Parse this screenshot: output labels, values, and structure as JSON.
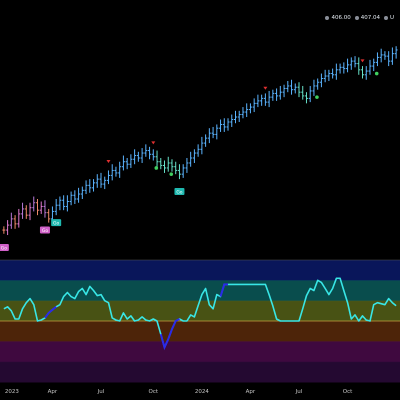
{
  "header": {
    "readouts": [
      {
        "value": "406.00"
      },
      {
        "value": "407.04"
      },
      {
        "value": "U"
      }
    ]
  },
  "colors": {
    "background": "#000000",
    "bar_up_strong": "#3b8fe0",
    "bar_up": "#5bb4ff",
    "bar_rising": "#66e0c8",
    "bar_down_strong": "#e07ad0",
    "bar_down": "#ee8a6a",
    "bar_down_mild": "#b87ad8",
    "signal_down": "#e03030",
    "signal_up": "#40d060",
    "go_label_bg": "#1fb9b0",
    "nogo_label_bg": "#d060c8",
    "oscillator_line": "#38e6e6",
    "oscillator_line_strong": "#2a2ae8",
    "zero_line": "#c0a040",
    "band_top": "#0a1a6a",
    "band_upper": "#0a5a5a",
    "band_mid": "#556018",
    "band_low": "#5a2a0a",
    "band_lower": "#4a0a4a",
    "band_bottom": "#2a0a3a",
    "axis_text": "#c8c8c8"
  },
  "chart_data": [
    {
      "type": "ohlc",
      "title": "",
      "x_tick_labels": [
        "2023",
        "Apr",
        "Jul",
        "Oct",
        "2024",
        "Apr",
        "Jul",
        "Oct"
      ],
      "weeks_start": 0,
      "close": [
        302,
        306,
        311,
        307,
        315,
        319,
        314,
        320,
        324,
        318,
        321,
        316,
        311,
        317,
        322,
        326,
        321,
        325,
        330,
        327,
        331,
        334,
        338,
        336,
        340,
        343,
        339,
        342,
        346,
        350,
        348,
        353,
        357,
        355,
        359,
        362,
        360,
        364,
        366,
        363,
        361,
        357,
        354,
        352,
        356,
        353,
        350,
        347,
        352,
        356,
        360,
        364,
        367,
        372,
        376,
        380,
        379,
        384,
        387,
        385,
        389,
        391,
        393,
        395,
        397,
        399,
        401,
        404,
        406,
        408,
        405,
        409,
        412,
        410,
        413,
        416,
        418,
        415,
        417,
        413,
        410,
        408,
        414,
        418,
        421,
        424,
        426,
        428,
        427,
        431,
        433,
        432,
        435,
        438,
        436,
        431,
        427,
        430,
        434,
        437,
        441,
        443,
        442,
        438,
        444,
        447
      ],
      "trend": [
        "dn",
        "dn",
        "dn",
        "dn",
        "dn",
        "dn",
        "dn",
        "dn",
        "dn",
        "dn",
        "dn",
        "dn",
        "dn",
        "go",
        "go",
        "go",
        "go",
        "go",
        "go",
        "go",
        "go",
        "go",
        "go",
        "go",
        "go",
        "go",
        "go",
        "go",
        "go",
        "go",
        "go",
        "go",
        "go",
        "go",
        "go",
        "go",
        "go",
        "go",
        "go",
        "go",
        "go",
        "wk",
        "wk",
        "wk",
        "wk",
        "wk",
        "wk",
        "wk",
        "go",
        "go",
        "go",
        "go",
        "go",
        "go",
        "go",
        "go",
        "go",
        "go",
        "go",
        "go",
        "go",
        "go",
        "go",
        "go",
        "go",
        "go",
        "go",
        "go",
        "go",
        "go",
        "go",
        "go",
        "go",
        "go",
        "go",
        "go",
        "go",
        "go",
        "go",
        "wk",
        "wk",
        "wk",
        "go",
        "go",
        "go",
        "go",
        "go",
        "go",
        "go",
        "go",
        "go",
        "go",
        "go",
        "go",
        "go",
        "wk",
        "wk",
        "go",
        "go",
        "go",
        "go",
        "go",
        "go",
        "go",
        "go",
        "go"
      ],
      "signals_down": [
        40,
        28,
        70,
        96
      ],
      "signals_up": [
        44,
        83,
        99,
        40
      ],
      "labels": [
        {
          "index": 0,
          "text": "Go",
          "kind": "nogo"
        },
        {
          "index": 11,
          "text": "Go",
          "kind": "nogo"
        },
        {
          "index": 14,
          "text": "Go",
          "kind": "go"
        },
        {
          "index": 47,
          "text": "Go",
          "kind": "go"
        }
      ]
    },
    {
      "type": "line",
      "title": "",
      "ylim": [
        -6,
        6
      ],
      "zero": 0,
      "values": [
        1.2,
        1.4,
        1.0,
        0.2,
        0.2,
        1.2,
        1.8,
        2.2,
        1.6,
        0.0,
        0.1,
        0.3,
        0.8,
        1.1,
        1.4,
        1.6,
        2.4,
        2.8,
        2.4,
        2.2,
        2.9,
        3.2,
        2.6,
        3.4,
        3.0,
        2.5,
        2.6,
        2.0,
        1.8,
        0.3,
        0.1,
        0.0,
        0.8,
        0.2,
        0.5,
        0.0,
        0.1,
        0.4,
        0.1,
        0.0,
        0.2,
        0.0,
        -1.3,
        -2.6,
        -1.8,
        -0.8,
        0.0,
        0.2,
        0.0,
        0.0,
        0.6,
        0.4,
        1.5,
        2.6,
        3.2,
        1.6,
        1.2,
        2.6,
        2.4,
        3.6,
        3.6,
        3.6,
        3.6,
        3.6,
        3.6,
        3.6,
        3.6,
        3.6,
        3.6,
        3.6,
        3.6,
        2.6,
        1.5,
        0.2,
        0.0,
        0.0,
        0.0,
        0.0,
        0.0,
        0.0,
        1.2,
        2.5,
        3.2,
        3.0,
        4.0,
        3.8,
        3.2,
        2.6,
        3.2,
        4.2,
        4.2,
        3.0,
        1.8,
        0.2,
        0.6,
        0.0,
        0.5,
        0.1,
        0.0,
        1.6,
        1.8,
        1.7,
        1.6,
        2.2,
        1.8,
        1.5
      ],
      "strong_segments": [
        [
          11,
          14
        ],
        [
          42,
          47
        ],
        [
          58,
          60
        ]
      ]
    }
  ]
}
